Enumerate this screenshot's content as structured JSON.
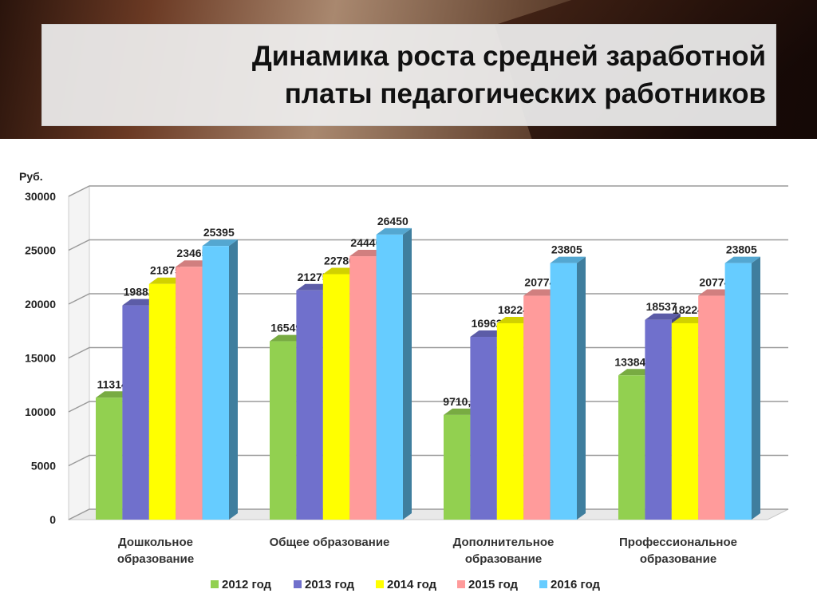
{
  "header": {
    "title_line1": "Динамика роста средней заработной",
    "title_line2": "платы педагогических работников"
  },
  "colors": {
    "series": [
      "#92d050",
      "#7070cc",
      "#ffff00",
      "#ff9b9b",
      "#66ccff"
    ]
  },
  "chart_data": {
    "type": "bar",
    "ylabel": "Руб.",
    "ylim": [
      0,
      30000
    ],
    "yticks": [
      0,
      5000,
      10000,
      15000,
      20000,
      25000,
      30000
    ],
    "grid": true,
    "legend_position": "bottom",
    "categories": [
      [
        "Дошкольное",
        "образование"
      ],
      [
        "Общее образование"
      ],
      [
        "Дополнительное",
        "образование"
      ],
      [
        "Профессиональное",
        "образование"
      ]
    ],
    "series": [
      {
        "name": "2012 год",
        "values": [
          11314,
          16549,
          9710.4,
          13384.4
        ],
        "labels": [
          "11314",
          "16549",
          "9710,4",
          "13384,4"
        ]
      },
      {
        "name": "2013 год",
        "values": [
          19882,
          21275,
          16962,
          18537
        ],
        "labels": [
          "19882",
          "21275",
          "16962",
          "18537"
        ]
      },
      {
        "name": "2014 год",
        "values": [
          21875,
          22780,
          18224,
          18224
        ],
        "labels": [
          "21875",
          "22780",
          "18224",
          "18224"
        ]
      },
      {
        "name": "2015 год",
        "values": [
          23465,
          24440,
          20774,
          20774
        ],
        "labels": [
          "23465",
          "24440",
          "20774",
          "20774"
        ]
      },
      {
        "name": "2016 год",
        "values": [
          25395,
          26450,
          23805,
          23805
        ],
        "labels": [
          "25395",
          "26450",
          "23805",
          "23805"
        ]
      }
    ]
  }
}
